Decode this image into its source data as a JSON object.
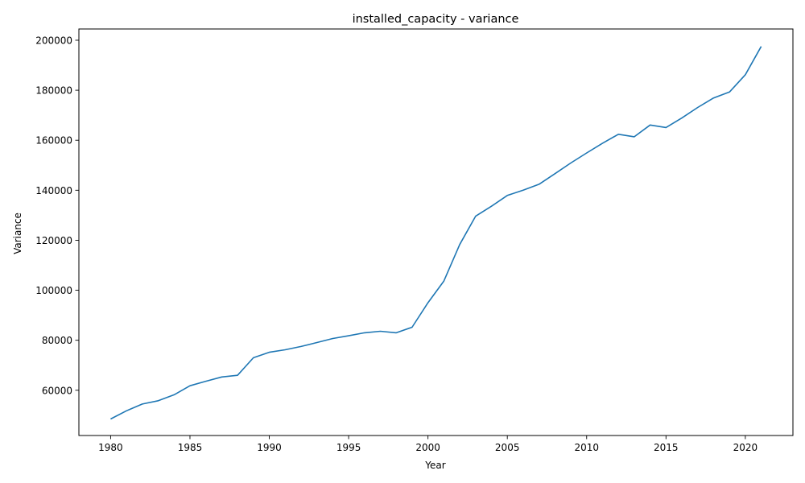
{
  "chart_data": {
    "type": "line",
    "title": "installed_capacity - variance",
    "xlabel": "Year",
    "ylabel": "Variance",
    "xlim": [
      1978,
      2023
    ],
    "ylim": [
      41900,
      204500
    ],
    "x_ticks": [
      1980,
      1985,
      1990,
      1995,
      2000,
      2005,
      2010,
      2015,
      2020
    ],
    "y_ticks": [
      60000,
      80000,
      100000,
      120000,
      140000,
      160000,
      180000,
      200000
    ],
    "grid": false,
    "legend": "none",
    "series": [
      {
        "color": "#1f77b4",
        "x": [
          1980,
          1981,
          1982,
          1983,
          1984,
          1985,
          1986,
          1987,
          1988,
          1989,
          1990,
          1991,
          1992,
          1993,
          1994,
          1995,
          1996,
          1997,
          1998,
          1999,
          2000,
          2001,
          2002,
          2003,
          2004,
          2005,
          2006,
          2007,
          2008,
          2009,
          2010,
          2011,
          2012,
          2013,
          2014,
          2015,
          2016,
          2017,
          2018,
          2019,
          2020,
          2021
        ],
        "y": [
          48500,
          51800,
          54500,
          55800,
          58200,
          61800,
          63600,
          65300,
          66000,
          73000,
          75200,
          76200,
          77500,
          79100,
          80700,
          81800,
          83000,
          83600,
          83000,
          85200,
          95000,
          103700,
          118300,
          129600,
          133600,
          137900,
          140000,
          142400,
          146600,
          150900,
          154900,
          158800,
          162400,
          161400,
          166100,
          165100,
          168900,
          173100,
          176900,
          179300,
          186200,
          197500
        ]
      }
    ]
  }
}
